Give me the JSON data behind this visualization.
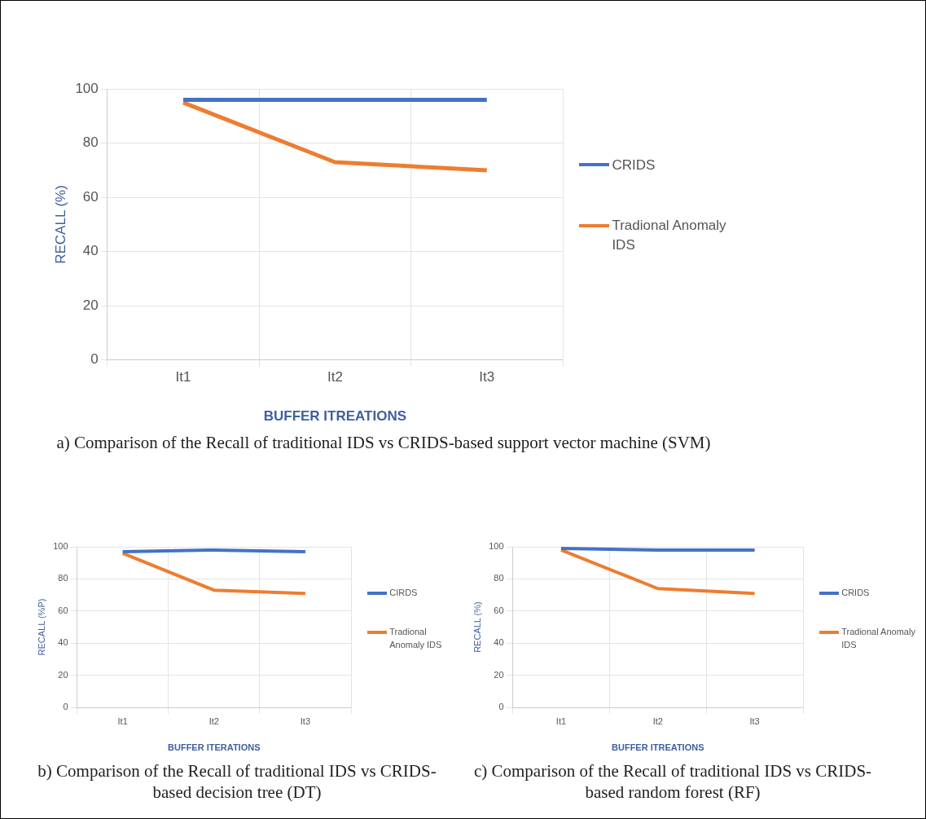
{
  "chart_data": [
    {
      "type": "line",
      "xlabel": "BUFFER ITREATIONS",
      "ylabel": "RECALL (%)",
      "categories": [
        "It1",
        "It2",
        "It3"
      ],
      "series": [
        {
          "name": "CRIDS",
          "color": "#4472c4",
          "values": [
            96,
            96,
            96
          ]
        },
        {
          "name": "Tradional Anomaly IDS",
          "color": "#ed7d31",
          "values": [
            95,
            73,
            70
          ]
        }
      ],
      "ylim": [
        0,
        100
      ],
      "yticks": [
        0,
        20,
        40,
        60,
        80,
        100
      ],
      "grid": true,
      "legend": "right",
      "marker": "none",
      "line_style": "solid",
      "annotations": [
        "a) Comparison of the Recall of traditional IDS vs CRIDS-based support vector machine (SVM)"
      ]
    },
    {
      "type": "line",
      "xlabel": "BUFFER ITERATIONS",
      "ylabel": "RECALL (%P)",
      "categories": [
        "It1",
        "It2",
        "It3"
      ],
      "series": [
        {
          "name": "CIRDS",
          "color": "#4472c4",
          "values": [
            97,
            98,
            97
          ]
        },
        {
          "name": "Tradional Anomaly IDS",
          "color": "#ed7d31",
          "values": [
            96,
            73,
            71
          ]
        }
      ],
      "ylim": [
        0,
        100
      ],
      "yticks": [
        0,
        20,
        40,
        60,
        80,
        100
      ],
      "grid": true,
      "legend": "right",
      "marker": "none",
      "line_style": "solid",
      "annotations": [
        "b) Comparison of the Recall of traditional IDS vs CRIDS-based decision tree (DT)"
      ]
    },
    {
      "type": "line",
      "xlabel": "BUFFER ITREATIONS",
      "ylabel": "RECALL (%)",
      "categories": [
        "It1",
        "It2",
        "It3"
      ],
      "series": [
        {
          "name": "CRIDS",
          "color": "#4472c4",
          "values": [
            99,
            98,
            98
          ]
        },
        {
          "name": "Tradional Anomaly IDS",
          "color": "#ed7d31",
          "values": [
            98,
            74,
            71
          ]
        }
      ],
      "ylim": [
        0,
        100
      ],
      "yticks": [
        0,
        20,
        40,
        60,
        80,
        100
      ],
      "grid": true,
      "legend": "right",
      "marker": "none",
      "line_style": "solid",
      "annotations": [
        "c) Comparison of the Recall of traditional IDS vs CRIDS-based random forest (RF)"
      ]
    }
  ]
}
